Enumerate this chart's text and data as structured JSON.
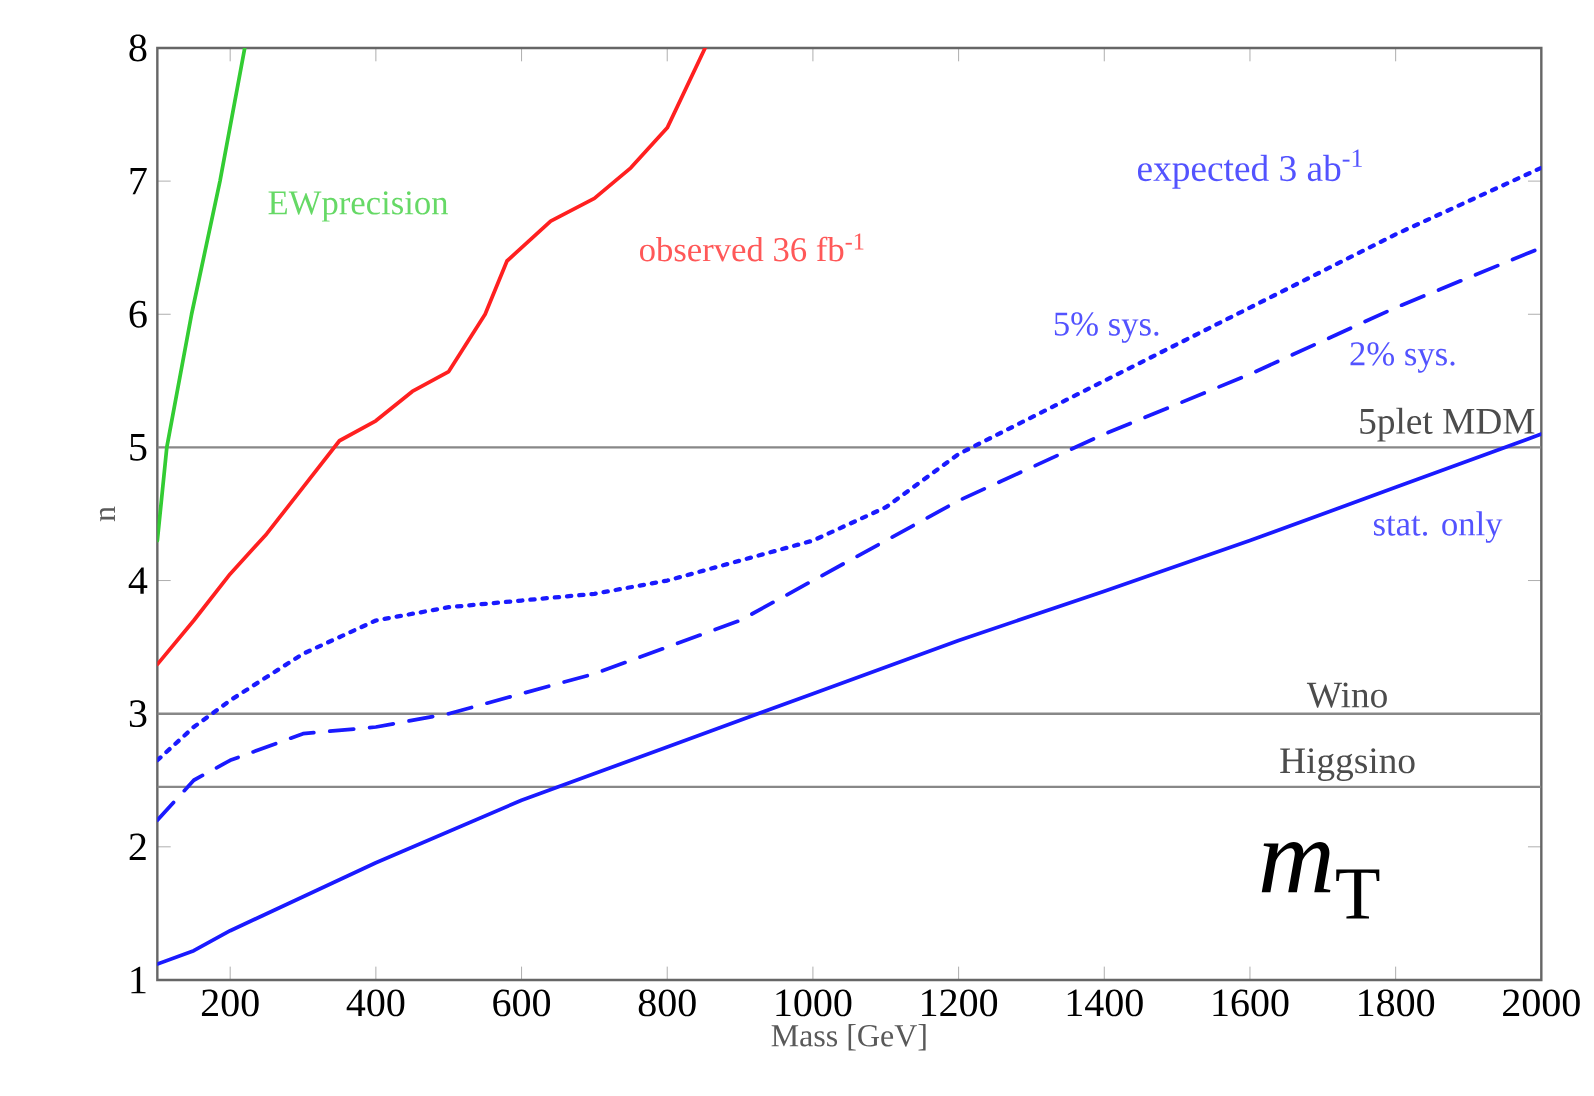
{
  "chart_data": {
    "type": "line",
    "xlabel": "Mass [GeV]",
    "ylabel": "n",
    "xlim": [
      100,
      2000
    ],
    "ylim": [
      1,
      8
    ],
    "xticks": [
      200,
      400,
      600,
      800,
      1000,
      1200,
      1400,
      1600,
      1800,
      2000
    ],
    "yticks": [
      1,
      2,
      3,
      4,
      5,
      6,
      7,
      8
    ],
    "series": [
      {
        "name": "EWprecision",
        "color": "#33cc33",
        "line_style": "solid",
        "x": [
          100,
          113,
          147,
          186,
          220
        ],
        "values": [
          4.3,
          5,
          6,
          7,
          8
        ]
      },
      {
        "name": "observed 36 fb$^{-1}$",
        "color": "#ff2020",
        "line_style": "solid",
        "x": [
          100,
          150,
          200,
          250,
          300,
          350,
          400,
          450,
          500,
          550,
          580,
          640,
          700,
          750,
          800,
          852
        ],
        "values": [
          3.37,
          3.7,
          4.05,
          4.35,
          4.7,
          5.05,
          5.2,
          5.42,
          5.57,
          6.0,
          6.4,
          6.7,
          6.87,
          7.1,
          7.4,
          8
        ]
      },
      {
        "name": "5% sys.",
        "color": "#1a1aff",
        "line_style": "dotted",
        "x": [
          100,
          150,
          200,
          300,
          400,
          500,
          600,
          700,
          800,
          900,
          1000,
          1100,
          1200,
          1400,
          1600,
          1800,
          2000
        ],
        "values": [
          2.65,
          2.9,
          3.1,
          3.45,
          3.7,
          3.8,
          3.85,
          3.9,
          4.0,
          4.15,
          4.3,
          4.55,
          4.95,
          5.5,
          6.05,
          6.6,
          7.1
        ]
      },
      {
        "name": "2% sys.",
        "color": "#1a1aff",
        "line_style": "dashed",
        "x": [
          100,
          150,
          200,
          300,
          400,
          500,
          600,
          700,
          800,
          900,
          1000,
          1100,
          1200,
          1400,
          1600,
          1800,
          2000
        ],
        "values": [
          2.2,
          2.5,
          2.65,
          2.85,
          2.9,
          3.0,
          3.15,
          3.3,
          3.5,
          3.7,
          4.0,
          4.3,
          4.6,
          5.1,
          5.55,
          6.05,
          6.5
        ]
      },
      {
        "name": "stat. only",
        "color": "#1a1aff",
        "line_style": "solid",
        "x": [
          100,
          150,
          200,
          400,
          600,
          800,
          1000,
          1200,
          1400,
          1600,
          1800,
          2000
        ],
        "values": [
          1.12,
          1.22,
          1.37,
          1.88,
          2.35,
          2.75,
          3.15,
          3.55,
          3.92,
          4.3,
          4.7,
          5.1
        ]
      }
    ],
    "ref_lines": [
      {
        "axis": "y",
        "value": 5,
        "label": "5plet MDM",
        "color": "#888888"
      },
      {
        "axis": "y",
        "value": 3,
        "label": "Wino",
        "color": "#888888"
      },
      {
        "axis": "y",
        "value": 2.45,
        "label": "Higgsino",
        "color": "#888888"
      }
    ],
    "annotations": [
      "expected 3 ab$^{-1}$",
      "*m*$_{T}$"
    ]
  }
}
